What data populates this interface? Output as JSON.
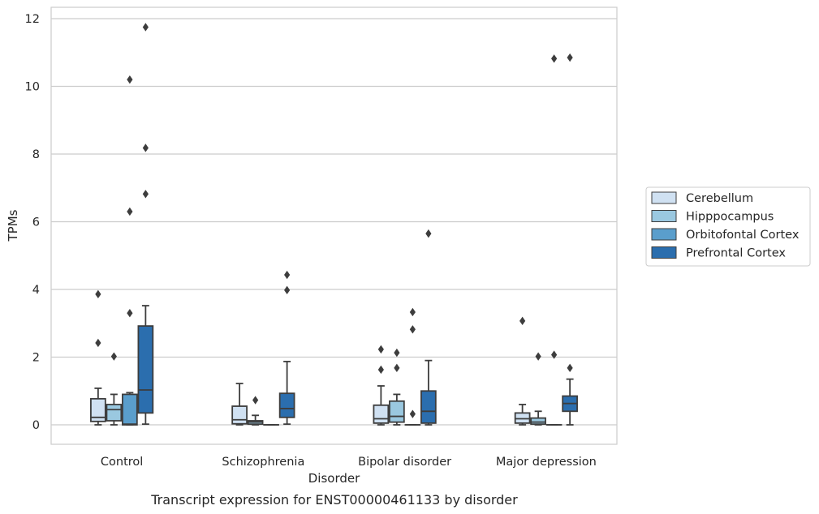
{
  "chart_data": {
    "type": "box",
    "xlabel": "Disorder",
    "ylabel": "TPMs",
    "caption": "Transcript expression for ENST00000461133 by disorder",
    "ylim": [
      -0.57,
      12.35
    ],
    "yticks": [
      0,
      2,
      4,
      6,
      8,
      10,
      12
    ],
    "grid": "horizontal",
    "legend_position": "right",
    "categories": [
      "Control",
      "Schizophrenia",
      "Bipolar disorder",
      "Major depression"
    ],
    "series": [
      {
        "name": "Cerebellum",
        "color": "#d0e1f2",
        "boxes": [
          {
            "whislo": 0.0,
            "q1": 0.1,
            "med": 0.22,
            "q3": 0.77,
            "whishi": 1.08,
            "fliers": [
              2.42,
              3.86
            ]
          },
          {
            "whislo": 0.0,
            "q1": 0.03,
            "med": 0.15,
            "q3": 0.55,
            "whishi": 1.22,
            "fliers": []
          },
          {
            "whislo": 0.0,
            "q1": 0.05,
            "med": 0.18,
            "q3": 0.58,
            "whishi": 1.15,
            "fliers": [
              1.63,
              2.23
            ]
          },
          {
            "whislo": 0.0,
            "q1": 0.05,
            "med": 0.18,
            "q3": 0.35,
            "whishi": 0.6,
            "fliers": [
              3.07
            ]
          }
        ]
      },
      {
        "name": "Hipppocampus",
        "color": "#9ac8e0",
        "boxes": [
          {
            "whislo": 0.0,
            "q1": 0.12,
            "med": 0.45,
            "q3": 0.6,
            "whishi": 0.9,
            "fliers": [
              2.02
            ]
          },
          {
            "whislo": 0.0,
            "q1": 0.02,
            "med": 0.08,
            "q3": 0.12,
            "whishi": 0.28,
            "fliers": [
              0.73
            ]
          },
          {
            "whislo": 0.0,
            "q1": 0.08,
            "med": 0.25,
            "q3": 0.7,
            "whishi": 0.9,
            "fliers": [
              1.68,
              2.13
            ]
          },
          {
            "whislo": 0.0,
            "q1": 0.02,
            "med": 0.08,
            "q3": 0.2,
            "whishi": 0.4,
            "fliers": [
              2.02
            ]
          }
        ]
      },
      {
        "name": "Orbitofontal Cortex",
        "color": "#5a9ecc",
        "boxes": [
          {
            "whislo": 0.0,
            "q1": 0.0,
            "med": 0.02,
            "q3": 0.9,
            "whishi": 0.95,
            "fliers": [
              3.3,
              6.3,
              10.2
            ]
          },
          {
            "whislo": 0.0,
            "q1": 0.0,
            "med": 0.0,
            "q3": 0.0,
            "whishi": 0.0,
            "fliers": []
          },
          {
            "whislo": 0.0,
            "q1": 0.0,
            "med": 0.0,
            "q3": 0.0,
            "whishi": 0.0,
            "fliers": [
              0.32,
              2.82,
              3.33
            ]
          },
          {
            "whislo": 0.0,
            "q1": 0.0,
            "med": 0.0,
            "q3": 0.0,
            "whishi": 0.0,
            "fliers": [
              2.07,
              10.82
            ]
          }
        ]
      },
      {
        "name": "Prefrontal Cortex",
        "color": "#2b6eae",
        "boxes": [
          {
            "whislo": 0.02,
            "q1": 0.35,
            "med": 1.03,
            "q3": 2.92,
            "whishi": 3.52,
            "fliers": [
              6.82,
              8.18,
              11.75
            ]
          },
          {
            "whislo": 0.02,
            "q1": 0.22,
            "med": 0.48,
            "q3": 0.93,
            "whishi": 1.87,
            "fliers": [
              3.98,
              4.43
            ]
          },
          {
            "whislo": 0.0,
            "q1": 0.05,
            "med": 0.4,
            "q3": 1.0,
            "whishi": 1.9,
            "fliers": [
              5.65
            ]
          },
          {
            "whislo": 0.0,
            "q1": 0.4,
            "med": 0.63,
            "q3": 0.85,
            "whishi": 1.35,
            "fliers": [
              1.68,
              10.85
            ]
          }
        ]
      }
    ]
  }
}
